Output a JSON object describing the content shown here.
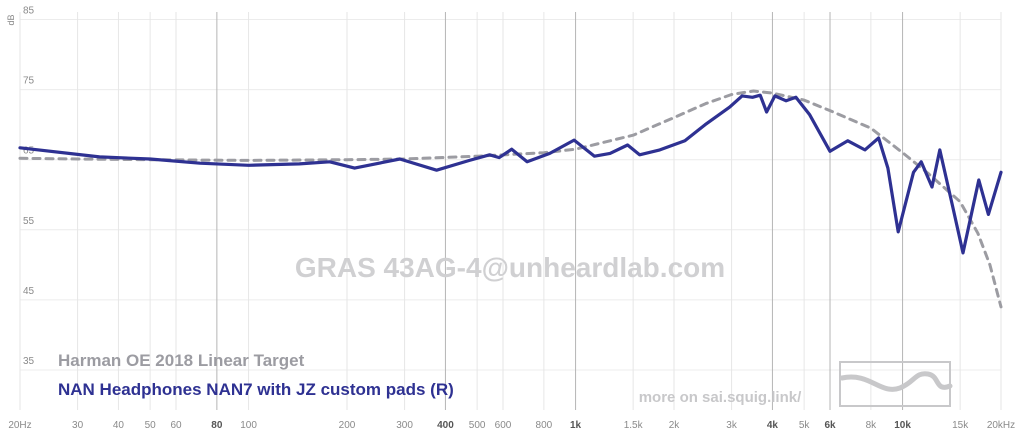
{
  "chart_data": {
    "type": "line",
    "watermark": "GRAS 43AG-4@unheardlab.com",
    "footer": "more on sai.squig.link/",
    "y_label": "dB",
    "log_x": true,
    "grid": true,
    "xlim": [
      20,
      20000
    ],
    "ylim": [
      30,
      87.5
    ],
    "yticks": [
      35,
      45,
      55,
      65,
      75,
      85
    ],
    "xticks": [
      {
        "value": 20,
        "label": "20Hz"
      },
      30,
      40,
      50,
      60,
      80,
      100,
      200,
      300,
      400,
      500,
      600,
      800,
      {
        "value": 1000,
        "label": "1k"
      },
      {
        "value": 1500,
        "label": "1.5k"
      },
      {
        "value": 2000,
        "label": "2k"
      },
      {
        "value": 3000,
        "label": "3k"
      },
      {
        "value": 4000,
        "label": "4k"
      },
      {
        "value": 5000,
        "label": "5k"
      },
      {
        "value": 6000,
        "label": "6k"
      },
      {
        "value": 8000,
        "label": "8k"
      },
      {
        "value": 10000,
        "label": "10k"
      },
      {
        "value": 15000,
        "label": "15k"
      },
      {
        "value": 20000,
        "label": "20kHz"
      }
    ],
    "series": [
      {
        "name": "Harman OE 2018 Linear Target",
        "color": "#9c9ca2",
        "dashed": true,
        "x": [
          20,
          30,
          50,
          100,
          200,
          300,
          500,
          800,
          1000,
          1500,
          2000,
          2500,
          3000,
          3500,
          4000,
          5000,
          6000,
          8000,
          10000,
          12000,
          15000,
          17000,
          18500,
          20000
        ],
        "values": [
          65.2,
          65.1,
          65.0,
          64.9,
          65.0,
          65.1,
          65.5,
          66.0,
          66.5,
          68.5,
          71.0,
          73.0,
          74.3,
          74.8,
          74.5,
          73.5,
          72.0,
          69.5,
          66.0,
          63.0,
          59.0,
          54.5,
          50.0,
          44.0
        ]
      },
      {
        "name": "NAN Headphones NAN7 with JZ custom pads (R)",
        "color": "#2e3192",
        "dashed": false,
        "x": [
          20,
          35,
          50,
          71,
          100,
          143,
          177,
          211,
          290,
          376,
          474,
          546,
          584,
          638,
          711,
          834,
          990,
          1143,
          1274,
          1443,
          1570,
          1810,
          2160,
          2490,
          2960,
          3230,
          3475,
          3670,
          3840,
          4070,
          4405,
          4720,
          5200,
          6000,
          6800,
          7670,
          8450,
          9020,
          9700,
          10800,
          11400,
          12300,
          13000,
          14200,
          15300,
          17100,
          18300,
          20000
        ],
        "values": [
          66.7,
          65.4,
          65.1,
          64.5,
          64.2,
          64.4,
          64.7,
          63.8,
          65.1,
          63.5,
          64.9,
          65.7,
          65.3,
          66.5,
          64.7,
          65.9,
          67.8,
          65.5,
          65.9,
          67.1,
          65.7,
          66.4,
          67.7,
          70.0,
          72.5,
          74.1,
          73.9,
          74.2,
          71.8,
          74.1,
          73.4,
          73.9,
          71.4,
          66.2,
          67.7,
          66.4,
          68.1,
          63.8,
          54.7,
          63.2,
          64.7,
          61.1,
          66.4,
          58.5,
          51.7,
          62.1,
          57.2,
          63.2
        ]
      }
    ]
  }
}
